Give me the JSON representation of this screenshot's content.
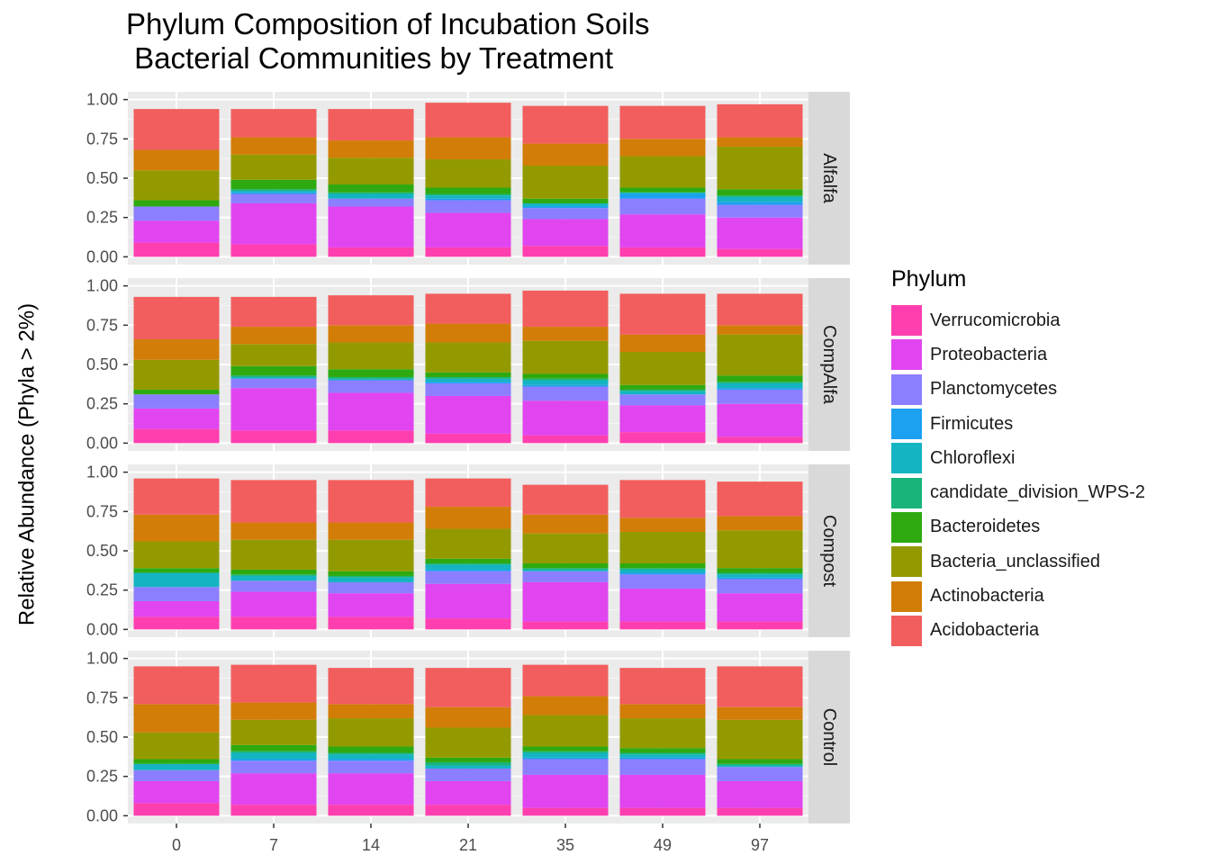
{
  "chart_data": {
    "type": "bar",
    "title": "Phylum Composition of Incubation Soils\n Bacterial Communities by Treatment",
    "title_lines": [
      "Phylum Composition of Incubation Soils",
      " Bacterial Communities by Treatment"
    ],
    "xlabel": "",
    "ylabel": "Relative Abundance (Phyla > 2%)",
    "ylim": [
      0,
      1
    ],
    "y_ticks": [
      "0.00",
      "0.25",
      "0.50",
      "0.75",
      "1.00"
    ],
    "categories": [
      "0",
      "7",
      "14",
      "21",
      "35",
      "49",
      "97"
    ],
    "legend_title": "Phylum",
    "legend_position": "right",
    "grid": true,
    "facets": [
      {
        "name": "Alfalfa",
        "series": [
          {
            "name": "Verrucomicrobia",
            "values": [
              0.09,
              0.08,
              0.06,
              0.06,
              0.07,
              0.06,
              0.05
            ]
          },
          {
            "name": "Proteobacteria",
            "values": [
              0.14,
              0.26,
              0.26,
              0.22,
              0.17,
              0.21,
              0.2
            ]
          },
          {
            "name": "Planctomycetes",
            "values": [
              0.09,
              0.06,
              0.05,
              0.08,
              0.07,
              0.1,
              0.08
            ]
          },
          {
            "name": "Firmicutes",
            "values": [
              0.0,
              0.01,
              0.0,
              0.01,
              0.01,
              0.03,
              0.02
            ]
          },
          {
            "name": "Chloroflexi",
            "values": [
              0.0,
              0.01,
              0.03,
              0.02,
              0.02,
              0.01,
              0.03
            ]
          },
          {
            "name": "candidate_division_WPS-2",
            "values": [
              0.0,
              0.01,
              0.01,
              0.01,
              0.0,
              0.0,
              0.01
            ]
          },
          {
            "name": "Bacteroidetes",
            "values": [
              0.04,
              0.06,
              0.05,
              0.04,
              0.03,
              0.03,
              0.04
            ]
          },
          {
            "name": "Bacteria_unclassified",
            "values": [
              0.19,
              0.16,
              0.17,
              0.18,
              0.21,
              0.2,
              0.27
            ]
          },
          {
            "name": "Actinobacteria",
            "values": [
              0.13,
              0.11,
              0.11,
              0.14,
              0.14,
              0.11,
              0.06
            ]
          },
          {
            "name": "Acidobacteria",
            "values": [
              0.26,
              0.18,
              0.2,
              0.22,
              0.24,
              0.21,
              0.21
            ]
          }
        ]
      },
      {
        "name": "CompAlfa",
        "series": [
          {
            "name": "Verrucomicrobia",
            "values": [
              0.09,
              0.08,
              0.08,
              0.06,
              0.05,
              0.07,
              0.04
            ]
          },
          {
            "name": "Proteobacteria",
            "values": [
              0.13,
              0.27,
              0.24,
              0.24,
              0.22,
              0.17,
              0.21
            ]
          },
          {
            "name": "Planctomycetes",
            "values": [
              0.09,
              0.06,
              0.08,
              0.08,
              0.09,
              0.07,
              0.09
            ]
          },
          {
            "name": "Firmicutes",
            "values": [
              0.0,
              0.0,
              0.0,
              0.01,
              0.01,
              0.0,
              0.01
            ]
          },
          {
            "name": "Chloroflexi",
            "values": [
              0.0,
              0.01,
              0.01,
              0.02,
              0.03,
              0.02,
              0.03
            ]
          },
          {
            "name": "candidate_division_WPS-2",
            "values": [
              0.0,
              0.01,
              0.01,
              0.01,
              0.01,
              0.01,
              0.01
            ]
          },
          {
            "name": "Bacteroidetes",
            "values": [
              0.03,
              0.06,
              0.05,
              0.03,
              0.03,
              0.03,
              0.04
            ]
          },
          {
            "name": "Bacteria_unclassified",
            "values": [
              0.19,
              0.14,
              0.17,
              0.19,
              0.21,
              0.21,
              0.26
            ]
          },
          {
            "name": "Actinobacteria",
            "values": [
              0.13,
              0.11,
              0.11,
              0.12,
              0.09,
              0.11,
              0.06
            ]
          },
          {
            "name": "Acidobacteria",
            "values": [
              0.27,
              0.19,
              0.19,
              0.19,
              0.23,
              0.26,
              0.2
            ]
          }
        ]
      },
      {
        "name": "Compost",
        "series": [
          {
            "name": "Verrucomicrobia",
            "values": [
              0.08,
              0.08,
              0.08,
              0.07,
              0.05,
              0.05,
              0.05
            ]
          },
          {
            "name": "Proteobacteria",
            "values": [
              0.1,
              0.16,
              0.15,
              0.22,
              0.25,
              0.21,
              0.18
            ]
          },
          {
            "name": "Planctomycetes",
            "values": [
              0.09,
              0.07,
              0.07,
              0.08,
              0.07,
              0.09,
              0.09
            ]
          },
          {
            "name": "Firmicutes",
            "values": [
              0.0,
              0.0,
              0.0,
              0.01,
              0.0,
              0.01,
              0.01
            ]
          },
          {
            "name": "Chloroflexi",
            "values": [
              0.09,
              0.03,
              0.03,
              0.03,
              0.01,
              0.02,
              0.02
            ]
          },
          {
            "name": "candidate_division_WPS-2",
            "values": [
              0.0,
              0.01,
              0.01,
              0.01,
              0.01,
              0.01,
              0.01
            ]
          },
          {
            "name": "Bacteroidetes",
            "values": [
              0.03,
              0.03,
              0.03,
              0.03,
              0.03,
              0.03,
              0.03
            ]
          },
          {
            "name": "Bacteria_unclassified",
            "values": [
              0.17,
              0.19,
              0.2,
              0.19,
              0.19,
              0.2,
              0.24
            ]
          },
          {
            "name": "Actinobacteria",
            "values": [
              0.17,
              0.11,
              0.11,
              0.14,
              0.12,
              0.09,
              0.09
            ]
          },
          {
            "name": "Acidobacteria",
            "values": [
              0.23,
              0.27,
              0.27,
              0.18,
              0.19,
              0.24,
              0.22
            ]
          }
        ]
      },
      {
        "name": "Control",
        "series": [
          {
            "name": "Verrucomicrobia",
            "values": [
              0.08,
              0.07,
              0.07,
              0.07,
              0.05,
              0.05,
              0.05
            ]
          },
          {
            "name": "Proteobacteria",
            "values": [
              0.14,
              0.2,
              0.2,
              0.15,
              0.21,
              0.21,
              0.17
            ]
          },
          {
            "name": "Planctomycetes",
            "values": [
              0.07,
              0.08,
              0.08,
              0.08,
              0.1,
              0.1,
              0.09
            ]
          },
          {
            "name": "Firmicutes",
            "values": [
              0.0,
              0.01,
              0.01,
              0.0,
              0.01,
              0.01,
              0.0
            ]
          },
          {
            "name": "Chloroflexi",
            "values": [
              0.04,
              0.04,
              0.03,
              0.02,
              0.03,
              0.02,
              0.01
            ]
          },
          {
            "name": "candidate_division_WPS-2",
            "values": [
              0.0,
              0.01,
              0.01,
              0.02,
              0.01,
              0.01,
              0.01
            ]
          },
          {
            "name": "Bacteroidetes",
            "values": [
              0.03,
              0.04,
              0.04,
              0.03,
              0.03,
              0.03,
              0.03
            ]
          },
          {
            "name": "Bacteria_unclassified",
            "values": [
              0.17,
              0.16,
              0.18,
              0.19,
              0.2,
              0.19,
              0.25
            ]
          },
          {
            "name": "Actinobacteria",
            "values": [
              0.18,
              0.11,
              0.09,
              0.13,
              0.12,
              0.09,
              0.08
            ]
          },
          {
            "name": "Acidobacteria",
            "values": [
              0.24,
              0.24,
              0.23,
              0.25,
              0.2,
              0.23,
              0.26
            ]
          }
        ]
      }
    ],
    "legend": [
      {
        "name": "Verrucomicrobia",
        "color": "#FF3FAF"
      },
      {
        "name": "Proteobacteria",
        "color": "#E145F0"
      },
      {
        "name": "Planctomycetes",
        "color": "#8B7FFF"
      },
      {
        "name": "Firmicutes",
        "color": "#1CA0F0"
      },
      {
        "name": "Chloroflexi",
        "color": "#14B4C2"
      },
      {
        "name": "candidate_division_WPS-2",
        "color": "#18B47A"
      },
      {
        "name": "Bacteroidetes",
        "color": "#2EAA10"
      },
      {
        "name": "Bacteria_unclassified",
        "color": "#939A00"
      },
      {
        "name": "Actinobacteria",
        "color": "#D27D08"
      },
      {
        "name": "Acidobacteria",
        "color": "#F25E5E"
      }
    ]
  }
}
